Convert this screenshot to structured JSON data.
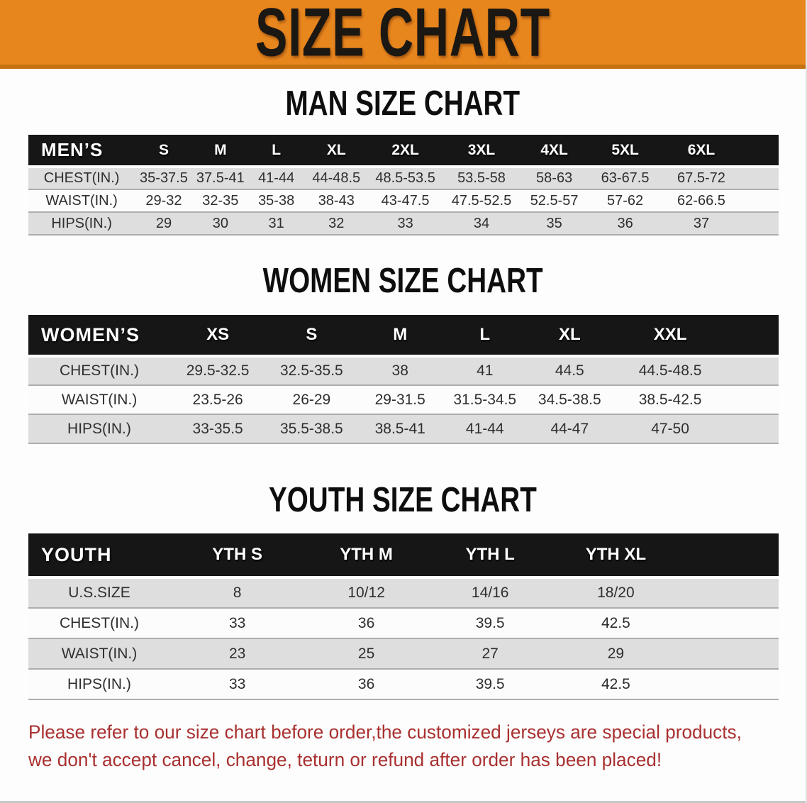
{
  "banner": {
    "title": "SIZE CHART"
  },
  "colors": {
    "banner_bg": "#E8861E",
    "banner_edge": "#C4720F",
    "header_bar": "#161616",
    "row_shade": "#DEDEDE",
    "disclaimer_red": "#A93030"
  },
  "sections": [
    {
      "id": "men",
      "heading": "MAN SIZE CHART",
      "table": {
        "header": [
          "MEN’S",
          "S",
          "M",
          "L",
          "XL",
          "2XL",
          "3XL",
          "4XL",
          "5XL",
          "6XL"
        ],
        "rows": [
          {
            "label": "CHEST(IN.)",
            "values": [
              "35-37.5",
              "37.5-41",
              "41-44",
              "44-48.5",
              "48.5-53.5",
              "53.5-58",
              "58-63",
              "63-67.5",
              "67.5-72"
            ]
          },
          {
            "label": "WAIST(IN.)",
            "values": [
              "29-32",
              "32-35",
              "35-38",
              "38-43",
              "43-47.5",
              "47.5-52.5",
              "52.5-57",
              "57-62",
              "62-66.5"
            ]
          },
          {
            "label": "HIPS(IN.)",
            "values": [
              "29",
              "30",
              "31",
              "32",
              "33",
              "34",
              "35",
              "36",
              "37"
            ]
          }
        ]
      }
    },
    {
      "id": "women",
      "heading": "WOMEN SIZE CHART",
      "table": {
        "header": [
          "WOMEN’S",
          "XS",
          "S",
          "M",
          "L",
          "XL",
          "XXL"
        ],
        "rows": [
          {
            "label": "CHEST(IN.)",
            "values": [
              "29.5-32.5",
              "32.5-35.5",
              "38",
              "41",
              "44.5",
              "44.5-48.5"
            ]
          },
          {
            "label": "WAIST(IN.)",
            "values": [
              "23.5-26",
              "26-29",
              "29-31.5",
              "31.5-34.5",
              "34.5-38.5",
              "38.5-42.5"
            ]
          },
          {
            "label": "HIPS(IN.)",
            "values": [
              "33-35.5",
              "35.5-38.5",
              "38.5-41",
              "41-44",
              "44-47",
              "47-50"
            ]
          }
        ]
      }
    },
    {
      "id": "youth",
      "heading": "YOUTH SIZE CHART",
      "table": {
        "header": [
          "YOUTH",
          "YTH S",
          "YTH M",
          "YTH L",
          "YTH XL"
        ],
        "rows": [
          {
            "label": "U.S.SIZE",
            "values": [
              "8",
              "10/12",
              "14/16",
              "18/20"
            ]
          },
          {
            "label": "CHEST(IN.)",
            "values": [
              "33",
              "36",
              "39.5",
              "42.5"
            ]
          },
          {
            "label": "WAIST(IN.)",
            "values": [
              "23",
              "25",
              "27",
              "29"
            ]
          },
          {
            "label": "HIPS(IN.)",
            "values": [
              "33",
              "36",
              "39.5",
              "42.5"
            ]
          }
        ]
      }
    }
  ],
  "disclaimer": {
    "lines": [
      "Please refer to our size chart before order,the customized jerseys are special products,",
      "we don't accept cancel, change, teturn or refund after order has been placed!"
    ]
  }
}
